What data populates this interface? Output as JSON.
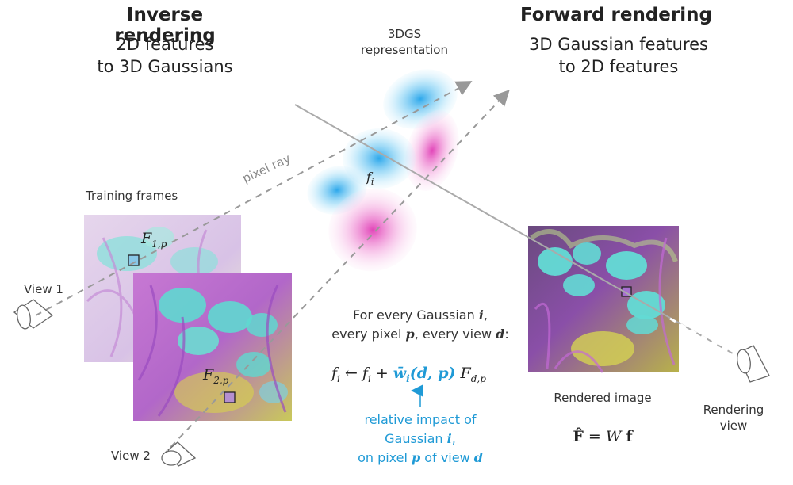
{
  "left_heading": {
    "title": "Inverse rendering",
    "line1": "2D features",
    "line2": "to 3D Gaussians"
  },
  "right_heading": {
    "title": "Forward rendering",
    "line1": "3D Gaussian features",
    "line2": "to 2D features"
  },
  "center_label": {
    "line1": "3DGS",
    "line2": "representation"
  },
  "pixel_ray_label": "pixel ray",
  "training_frames_label": "Training frames",
  "view1_label": "View 1",
  "view2_label": "View 2",
  "gaussian_label": "f_i",
  "frame1_label": "F_{1,p}",
  "frame2_label": "F_{2,p}",
  "caption": {
    "line1_prefix": "For every Gaussian ",
    "line1_var": "i",
    "line1_suffix": ",",
    "line2_prefix": "every pixel ",
    "line2_var1": "p",
    "line2_mid": ", every view ",
    "line2_var2": "d",
    "line2_suffix": ":"
  },
  "equation": "f_i ← f_i + w̄_i(d,p) F_{d,p}",
  "annotation": {
    "line1": "relative impact of",
    "line2_prefix": "Gaussian ",
    "line2_var": "i",
    "line2_suffix": ",",
    "line3_prefix": "on pixel ",
    "line3_var1": "p",
    "line3_mid": " of view ",
    "line3_var2": "d"
  },
  "rendered_image_label": "Rendered image",
  "rendered_equation": "F̂ = W f",
  "rendering_view_label": {
    "line1": "Rendering",
    "line2": "view"
  },
  "colors": {
    "gaussian_blue": "#2aa8ea",
    "gaussian_pink": "#e040b8",
    "annotation_blue": "#1f9ad6",
    "ray_gray": "#888888"
  }
}
